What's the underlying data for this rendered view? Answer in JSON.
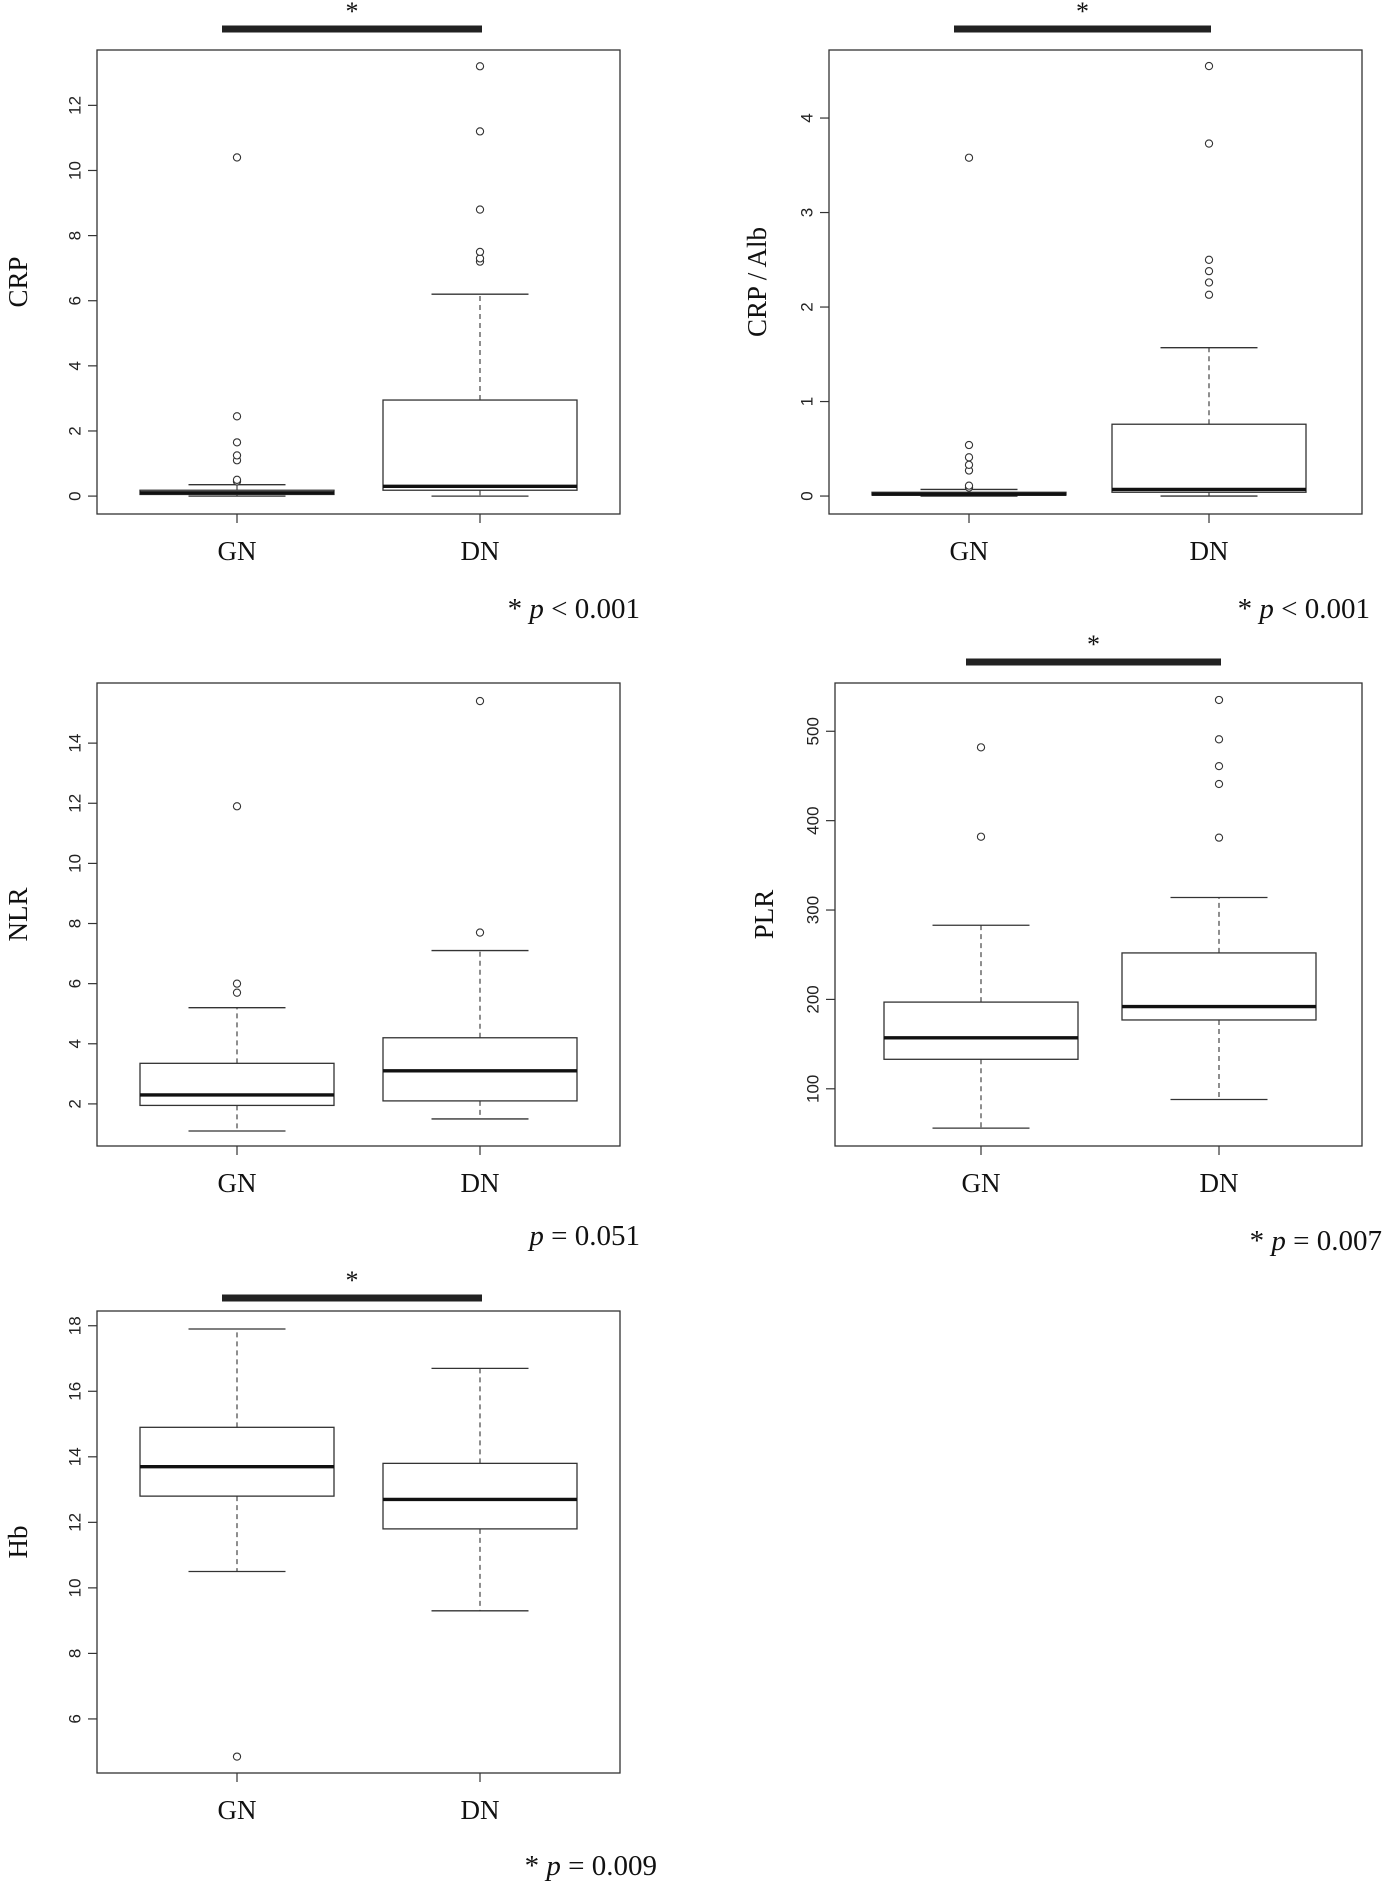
{
  "chart_data": [
    {
      "type": "box",
      "ylabel": "CRP",
      "categories": [
        "GN",
        "DN"
      ],
      "yticks": [
        0,
        2,
        4,
        6,
        8,
        10,
        12
      ],
      "ylim": [
        -0.55,
        13.7
      ],
      "boxes": [
        {
          "category": "GN",
          "whisker_low": 0.0,
          "q1": 0.05,
          "median": 0.1,
          "q3": 0.18,
          "whisker_high": 0.35,
          "outliers": [
            0.45,
            0.5,
            1.1,
            1.25,
            1.65,
            2.45,
            10.4
          ]
        },
        {
          "category": "DN",
          "whisker_low": 0.0,
          "q1": 0.18,
          "median": 0.3,
          "q3": 2.95,
          "whisker_high": 6.2,
          "outliers": [
            7.2,
            7.3,
            7.5,
            8.8,
            11.2,
            13.2
          ]
        }
      ],
      "significance": {
        "marker": "*",
        "p_text": "* p < 0.001",
        "p_prefix": "* ",
        "p_italic": "p",
        "p_rest": " < 0.001"
      }
    },
    {
      "type": "box",
      "ylabel": "CRP / Alb",
      "categories": [
        "GN",
        "DN"
      ],
      "yticks": [
        0,
        1,
        2,
        3,
        4
      ],
      "ylim": [
        -0.19,
        4.72
      ],
      "boxes": [
        {
          "category": "GN",
          "whisker_low": 0.0,
          "q1": 0.01,
          "median": 0.02,
          "q3": 0.04,
          "whisker_high": 0.07,
          "outliers": [
            0.09,
            0.11,
            0.27,
            0.33,
            0.41,
            0.54,
            3.58
          ]
        },
        {
          "category": "DN",
          "whisker_low": 0.0,
          "q1": 0.04,
          "median": 0.07,
          "q3": 0.76,
          "whisker_high": 1.57,
          "outliers": [
            2.13,
            2.26,
            2.38,
            2.5,
            3.73,
            4.55
          ]
        }
      ],
      "significance": {
        "marker": "*",
        "p_text": "* p < 0.001",
        "p_prefix": "* ",
        "p_italic": "p",
        "p_rest": " < 0.001"
      }
    },
    {
      "type": "box",
      "ylabel": "NLR",
      "categories": [
        "GN",
        "DN"
      ],
      "yticks": [
        2,
        4,
        6,
        8,
        10,
        12,
        14
      ],
      "ylim": [
        0.6,
        16.0
      ],
      "boxes": [
        {
          "category": "GN",
          "whisker_low": 1.1,
          "q1": 1.95,
          "median": 2.3,
          "q3": 3.35,
          "whisker_high": 5.2,
          "outliers": [
            5.7,
            6.0,
            11.9
          ]
        },
        {
          "category": "DN",
          "whisker_low": 1.5,
          "q1": 2.1,
          "median": 3.1,
          "q3": 4.2,
          "whisker_high": 7.1,
          "outliers": [
            7.7,
            15.4
          ]
        }
      ],
      "significance": {
        "marker": "",
        "p_text": "p = 0.051",
        "p_prefix": "",
        "p_italic": "p",
        "p_rest": " = 0.051"
      }
    },
    {
      "type": "box",
      "ylabel": "PLR",
      "categories": [
        "GN",
        "DN"
      ],
      "yticks": [
        100,
        200,
        300,
        400,
        500
      ],
      "ylim": [
        36,
        554
      ],
      "boxes": [
        {
          "category": "GN",
          "whisker_low": 56,
          "q1": 133,
          "median": 157,
          "q3": 197,
          "whisker_high": 283,
          "outliers": [
            382,
            482
          ]
        },
        {
          "category": "DN",
          "whisker_low": 88,
          "q1": 177,
          "median": 192,
          "q3": 252,
          "whisker_high": 314,
          "outliers": [
            381,
            441,
            461,
            491,
            535
          ]
        }
      ],
      "significance": {
        "marker": "*",
        "p_text": "* p = 0.007",
        "p_prefix": "* ",
        "p_italic": "p",
        "p_rest": " = 0.007"
      }
    },
    {
      "type": "box",
      "ylabel": "Hb",
      "categories": [
        "GN",
        "DN"
      ],
      "yticks": [
        6,
        8,
        10,
        12,
        14,
        16,
        18
      ],
      "ylim": [
        4.35,
        18.45
      ],
      "boxes": [
        {
          "category": "GN",
          "whisker_low": 10.5,
          "q1": 12.8,
          "median": 13.7,
          "q3": 14.9,
          "whisker_high": 17.9,
          "outliers": [
            4.85
          ]
        },
        {
          "category": "DN",
          "whisker_low": 9.3,
          "q1": 11.8,
          "median": 12.7,
          "q3": 13.8,
          "whisker_high": 16.7,
          "outliers": []
        }
      ],
      "significance": {
        "marker": "*",
        "p_text": "* p = 0.009",
        "p_prefix": "* ",
        "p_italic": "p",
        "p_rest": " = 0.009"
      }
    }
  ]
}
